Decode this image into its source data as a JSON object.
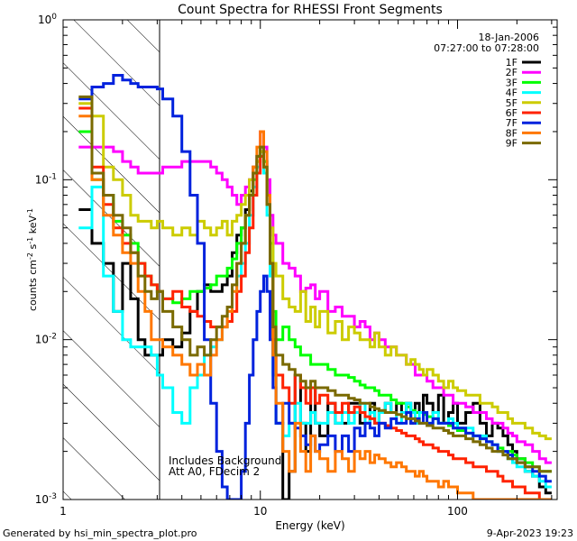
{
  "chart_data": {
    "type": "line",
    "title": "Count Spectra for RHESSI Front Segments",
    "xlabel": "Energy (keV)",
    "ylabel": {
      "base": "counts cm",
      "exp1": "-2",
      "mid": " s",
      "exp2": "-1",
      "end": " keV",
      "exp3": "-1"
    },
    "x_scale": "log",
    "y_scale": "log",
    "xlim": [
      1,
      320
    ],
    "ylim": [
      0.001,
      1
    ],
    "x_ticks": [
      {
        "value": 1,
        "label": "1"
      },
      {
        "value": 10,
        "label": "10"
      },
      {
        "value": 100,
        "label": "100"
      }
    ],
    "y_ticks": [
      {
        "value": 1,
        "base": "10",
        "exp": "0"
      },
      {
        "value": 0.1,
        "base": "10",
        "exp": "-1"
      },
      {
        "value": 0.01,
        "base": "10",
        "exp": "-2"
      },
      {
        "value": 0.001,
        "base": "10",
        "exp": "-3"
      }
    ],
    "date": "18-Jan-2006",
    "time_range": "07:27:00 to 07:28:00",
    "annotation_lines": [
      "Includes Background",
      "Att A0, FDecim 2"
    ],
    "excluded_region_keV": [
      1,
      3
    ],
    "energy_edges": [
      1.2,
      1.4,
      1.6,
      1.8,
      2.0,
      2.2,
      2.4,
      2.6,
      2.8,
      3.0,
      3.2,
      3.6,
      4.0,
      4.4,
      4.8,
      5.2,
      5.6,
      6.0,
      6.4,
      6.8,
      7.2,
      7.6,
      8.0,
      8.4,
      8.8,
      9.2,
      9.6,
      10.0,
      10.4,
      10.8,
      11.2,
      11.6,
      12.0,
      13,
      14,
      15,
      16,
      17,
      18,
      19,
      20,
      22,
      24,
      26,
      28,
      30,
      32,
      34,
      36,
      38,
      40,
      43,
      46,
      49,
      52,
      55,
      58,
      61,
      64,
      67,
      70,
      75,
      80,
      85,
      90,
      95,
      100,
      110,
      120,
      130,
      140,
      150,
      160,
      170,
      180,
      190,
      200,
      220,
      240,
      260,
      280,
      300
    ],
    "series": [
      {
        "name": "1F",
        "color": "#000000",
        "values": [
          0.065,
          0.04,
          0.03,
          0.015,
          0.03,
          0.018,
          0.01,
          0.008,
          0.008,
          0.008,
          0.01,
          0.009,
          0.011,
          0.015,
          0.02,
          0.022,
          0.02,
          0.02,
          0.022,
          0.025,
          0.035,
          0.045,
          0.05,
          0.065,
          0.085,
          0.12,
          0.14,
          0.15,
          0.13,
          0.08,
          0.03,
          0.008,
          0.003,
          0.001,
          0.0015,
          0.006,
          0.003,
          0.002,
          0.005,
          0.003,
          0.0025,
          0.004,
          0.003,
          0.003,
          0.004,
          0.004,
          0.003,
          0.003,
          0.004,
          0.003,
          0.0035,
          0.004,
          0.0035,
          0.004,
          0.0035,
          0.004,
          0.003,
          0.004,
          0.0035,
          0.0045,
          0.004,
          0.0035,
          0.0045,
          0.003,
          0.0035,
          0.004,
          0.003,
          0.0035,
          0.004,
          0.003,
          0.0025,
          0.003,
          0.0028,
          0.0025,
          0.0022,
          0.002,
          0.0018,
          0.0015,
          0.0014,
          0.0012,
          0.0011
        ]
      },
      {
        "name": "2F",
        "color": "#ff00ff",
        "values": [
          0.16,
          0.16,
          0.16,
          0.15,
          0.13,
          0.12,
          0.11,
          0.11,
          0.11,
          0.11,
          0.12,
          0.12,
          0.13,
          0.13,
          0.13,
          0.13,
          0.12,
          0.11,
          0.1,
          0.09,
          0.08,
          0.07,
          0.08,
          0.09,
          0.1,
          0.12,
          0.14,
          0.2,
          0.16,
          0.1,
          0.06,
          0.045,
          0.04,
          0.03,
          0.028,
          0.025,
          0.02,
          0.021,
          0.022,
          0.018,
          0.02,
          0.015,
          0.016,
          0.014,
          0.014,
          0.012,
          0.013,
          0.012,
          0.01,
          0.011,
          0.01,
          0.009,
          0.009,
          0.008,
          0.008,
          0.007,
          0.007,
          0.006,
          0.006,
          0.006,
          0.0055,
          0.005,
          0.005,
          0.0045,
          0.0045,
          0.004,
          0.004,
          0.0038,
          0.0035,
          0.0035,
          0.0032,
          0.003,
          0.003,
          0.0028,
          0.0026,
          0.0025,
          0.0023,
          0.0022,
          0.002,
          0.0018,
          0.0017
        ]
      },
      {
        "name": "3F",
        "color": "#00ff00",
        "values": [
          0.2,
          0.1,
          0.08,
          0.055,
          0.045,
          0.04,
          0.03,
          0.025,
          0.022,
          0.02,
          0.018,
          0.017,
          0.018,
          0.02,
          0.02,
          0.021,
          0.022,
          0.025,
          0.025,
          0.028,
          0.032,
          0.04,
          0.05,
          0.06,
          0.08,
          0.1,
          0.13,
          0.16,
          0.13,
          0.08,
          0.04,
          0.015,
          0.01,
          0.012,
          0.01,
          0.009,
          0.008,
          0.008,
          0.007,
          0.007,
          0.007,
          0.0065,
          0.006,
          0.006,
          0.0058,
          0.0055,
          0.0052,
          0.005,
          0.005,
          0.0048,
          0.0045,
          0.0045,
          0.0042,
          0.004,
          0.004,
          0.0038,
          0.0036,
          0.0035,
          0.0035,
          0.0034,
          0.0033,
          0.0032,
          0.003,
          0.003,
          0.0029,
          0.0028,
          0.0027,
          0.0026,
          0.0025,
          0.0024,
          0.0023,
          0.0022,
          0.0021,
          0.002,
          0.002,
          0.0019,
          0.0018,
          0.0017,
          0.0016,
          0.0015,
          0.0015
        ]
      },
      {
        "name": "4F",
        "color": "#00ffff",
        "values": [
          0.05,
          0.09,
          0.025,
          0.015,
          0.01,
          0.009,
          0.009,
          0.009,
          0.008,
          0.006,
          0.005,
          0.0035,
          0.003,
          0.005,
          0.006,
          0.008,
          0.009,
          0.01,
          0.012,
          0.013,
          0.02,
          0.025,
          0.03,
          0.04,
          0.06,
          0.09,
          0.12,
          0.14,
          0.11,
          0.06,
          0.025,
          0.006,
          0.003,
          0.0025,
          0.003,
          0.004,
          0.003,
          0.003,
          0.0035,
          0.003,
          0.003,
          0.0035,
          0.003,
          0.0035,
          0.003,
          0.0035,
          0.004,
          0.003,
          0.0035,
          0.003,
          0.0035,
          0.004,
          0.0035,
          0.003,
          0.0035,
          0.004,
          0.0035,
          0.003,
          0.0035,
          0.0035,
          0.003,
          0.0035,
          0.003,
          0.003,
          0.0032,
          0.003,
          0.0028,
          0.0028,
          0.0025,
          0.0025,
          0.0023,
          0.0022,
          0.002,
          0.002,
          0.0018,
          0.0017,
          0.0016,
          0.0015,
          0.0014,
          0.0013,
          0.0012
        ]
      },
      {
        "name": "5F",
        "color": "#cccc00",
        "values": [
          0.3,
          0.25,
          0.12,
          0.1,
          0.08,
          0.06,
          0.055,
          0.055,
          0.05,
          0.055,
          0.05,
          0.045,
          0.05,
          0.045,
          0.055,
          0.05,
          0.045,
          0.05,
          0.055,
          0.045,
          0.055,
          0.06,
          0.07,
          0.08,
          0.1,
          0.12,
          0.13,
          0.15,
          0.12,
          0.08,
          0.05,
          0.03,
          0.025,
          0.018,
          0.016,
          0.015,
          0.02,
          0.013,
          0.016,
          0.012,
          0.015,
          0.011,
          0.013,
          0.01,
          0.012,
          0.011,
          0.01,
          0.01,
          0.009,
          0.011,
          0.009,
          0.008,
          0.009,
          0.008,
          0.008,
          0.007,
          0.0075,
          0.007,
          0.0065,
          0.006,
          0.0065,
          0.006,
          0.0055,
          0.005,
          0.0055,
          0.005,
          0.0048,
          0.0045,
          0.0045,
          0.004,
          0.004,
          0.0038,
          0.0035,
          0.0035,
          0.0032,
          0.003,
          0.003,
          0.0028,
          0.0026,
          0.0025,
          0.0024
        ]
      },
      {
        "name": "6F",
        "color": "#ff2200",
        "values": [
          0.28,
          0.12,
          0.07,
          0.05,
          0.04,
          0.035,
          0.03,
          0.025,
          0.022,
          0.02,
          0.018,
          0.02,
          0.016,
          0.015,
          0.014,
          0.013,
          0.012,
          0.012,
          0.012,
          0.013,
          0.015,
          0.02,
          0.025,
          0.035,
          0.05,
          0.08,
          0.11,
          0.14,
          0.12,
          0.07,
          0.03,
          0.01,
          0.006,
          0.005,
          0.004,
          0.006,
          0.005,
          0.004,
          0.005,
          0.004,
          0.0045,
          0.004,
          0.0035,
          0.004,
          0.0035,
          0.0038,
          0.0035,
          0.0033,
          0.0032,
          0.003,
          0.003,
          0.0029,
          0.0028,
          0.0027,
          0.0026,
          0.0025,
          0.0025,
          0.0024,
          0.0023,
          0.0022,
          0.0022,
          0.0021,
          0.002,
          0.002,
          0.0019,
          0.0018,
          0.0018,
          0.0017,
          0.0016,
          0.0016,
          0.0015,
          0.0015,
          0.0014,
          0.0013,
          0.0013,
          0.0012,
          0.0012,
          0.0011,
          0.0011,
          0.001,
          0.001
        ]
      },
      {
        "name": "7F",
        "color": "#0022dd",
        "values": [
          0.32,
          0.38,
          0.4,
          0.45,
          0.42,
          0.4,
          0.38,
          0.38,
          0.38,
          0.37,
          0.32,
          0.25,
          0.15,
          0.08,
          0.04,
          0.01,
          0.004,
          0.002,
          0.0012,
          0.001,
          0.001,
          0.001,
          0.0015,
          0.003,
          0.006,
          0.01,
          0.015,
          0.02,
          0.025,
          0.02,
          0.01,
          0.005,
          0.003,
          0.004,
          0.003,
          0.0028,
          0.0025,
          0.0022,
          0.0025,
          0.002,
          0.0022,
          0.0025,
          0.002,
          0.0025,
          0.002,
          0.0028,
          0.0025,
          0.003,
          0.0028,
          0.0025,
          0.003,
          0.0028,
          0.0032,
          0.003,
          0.003,
          0.0035,
          0.003,
          0.0032,
          0.003,
          0.0035,
          0.003,
          0.0032,
          0.003,
          0.003,
          0.003,
          0.0028,
          0.0028,
          0.0026,
          0.0025,
          0.0024,
          0.0023,
          0.0022,
          0.002,
          0.002,
          0.0019,
          0.0018,
          0.0017,
          0.0016,
          0.0015,
          0.0014,
          0.0013
        ]
      },
      {
        "name": "8F",
        "color": "#ff7700",
        "values": [
          0.25,
          0.1,
          0.06,
          0.045,
          0.035,
          0.03,
          0.02,
          0.015,
          0.01,
          0.01,
          0.009,
          0.008,
          0.007,
          0.006,
          0.007,
          0.006,
          0.008,
          0.01,
          0.012,
          0.015,
          0.02,
          0.03,
          0.04,
          0.06,
          0.08,
          0.12,
          0.16,
          0.2,
          0.15,
          0.08,
          0.03,
          0.008,
          0.004,
          0.002,
          0.0015,
          0.003,
          0.002,
          0.0015,
          0.0025,
          0.002,
          0.0018,
          0.0015,
          0.002,
          0.0018,
          0.0015,
          0.002,
          0.0018,
          0.002,
          0.0017,
          0.0019,
          0.0018,
          0.0017,
          0.0016,
          0.0017,
          0.0016,
          0.0015,
          0.0015,
          0.0014,
          0.0015,
          0.0014,
          0.0013,
          0.0013,
          0.0012,
          0.0013,
          0.0012,
          0.0012,
          0.0011,
          0.0011,
          0.001,
          0.001,
          0.001,
          0.001,
          0.001,
          0.001,
          0.001,
          0.001,
          0.001,
          0.001,
          0.001,
          0.001,
          0.001
        ]
      },
      {
        "name": "9F",
        "color": "#7a6a00",
        "values": [
          0.33,
          0.11,
          0.08,
          0.06,
          0.05,
          0.035,
          0.025,
          0.02,
          0.018,
          0.02,
          0.015,
          0.012,
          0.01,
          0.008,
          0.009,
          0.008,
          0.01,
          0.012,
          0.014,
          0.016,
          0.022,
          0.03,
          0.04,
          0.06,
          0.08,
          0.11,
          0.14,
          0.16,
          0.12,
          0.07,
          0.03,
          0.012,
          0.008,
          0.007,
          0.0065,
          0.006,
          0.0055,
          0.005,
          0.0055,
          0.005,
          0.005,
          0.0048,
          0.0045,
          0.0045,
          0.0043,
          0.0042,
          0.004,
          0.004,
          0.0038,
          0.0037,
          0.0036,
          0.0035,
          0.0035,
          0.0034,
          0.0033,
          0.0032,
          0.0032,
          0.0031,
          0.003,
          0.003,
          0.0029,
          0.0028,
          0.0028,
          0.0027,
          0.0026,
          0.0025,
          0.0025,
          0.0024,
          0.0023,
          0.0022,
          0.0021,
          0.002,
          0.002,
          0.0019,
          0.0018,
          0.0018,
          0.0017,
          0.0016,
          0.0016,
          0.0015,
          0.0015
        ]
      }
    ]
  },
  "footer": {
    "generated_by": "Generated by hsi_min_spectra_plot.pro",
    "timestamp": "9-Apr-2023 19:23"
  }
}
